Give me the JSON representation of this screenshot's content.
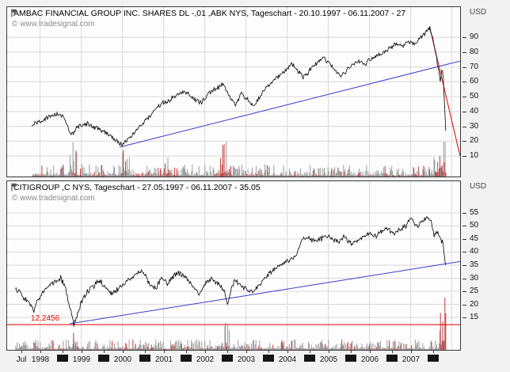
{
  "colors": {
    "price": "#000000",
    "uptrend": "#3b3bd0",
    "downtrend": "#e00000",
    "support": "#e00000",
    "grid": "#d9d9d9",
    "volume_gray": "#9b9b9b",
    "volume_red": "#c23b3b",
    "copyright_text": "#8a8a8a"
  },
  "panels": [
    {
      "title": "AMBAC FINANCIAL GROUP INC. SHARES DL -,01 ,ABK NYS, Tageschart - 20.10.1997 - 06.11.2007 - 27",
      "copyright": "© www.tradesignal.com",
      "unit": "USD"
    },
    {
      "title": "CITIGROUP ,C NYS, Tageschart - 27.05.1997 - 06.11.2007 - 35.05",
      "copyright": "© www.tradesignal.com",
      "unit": "USD",
      "support_label": "12.2456"
    }
  ],
  "time_axis": {
    "start_label": "Jul",
    "start_label_year": 1997.54,
    "year_labels": [
      "1998",
      "1999",
      "2000",
      "2001",
      "2002",
      "2003",
      "2004",
      "2005",
      "2006",
      "2007"
    ],
    "marker_years": [
      1998.54,
      1999.54,
      2000.54,
      2001.54,
      2002.54,
      2003.54,
      2004.54,
      2005.54,
      2006.54,
      2007.54
    ]
  },
  "chart_data": [
    {
      "type": "line",
      "title": "AMBAC FINANCIAL GROUP INC. SHARES DL -,01 ,ABK NYS, Tageschart - 20.10.1997 - 06.11.2007 - 27",
      "ylabel": "USD",
      "last_price": 27,
      "xlim": [
        1997.2,
        2008.2
      ],
      "ylim": [
        -3.8,
        110.3
      ],
      "y_ticks": [
        10,
        20,
        30,
        40,
        50,
        60,
        70,
        80,
        90
      ],
      "x_tick_labels": [
        "Jul",
        "1998",
        "1999",
        "2000",
        "2001",
        "2002",
        "2003",
        "2004",
        "2005",
        "2006",
        "2007"
      ],
      "series": [
        {
          "name": "ABK NYS daily close (USD)",
          "x": [
            1997.8,
            1998.0,
            1998.2,
            1998.45,
            1998.6,
            1998.75,
            1998.9,
            1999.1,
            1999.3,
            1999.5,
            1999.7,
            1999.85,
            2000.0,
            2000.15,
            2000.3,
            2000.5,
            2000.7,
            2000.9,
            2001.1,
            2001.3,
            2001.5,
            2001.7,
            2001.9,
            2002.1,
            2002.3,
            2002.45,
            2002.6,
            2002.75,
            2002.9,
            2003.05,
            2003.2,
            2003.35,
            2003.5,
            2003.65,
            2003.8,
            2003.95,
            2004.1,
            2004.25,
            2004.4,
            2004.55,
            2004.7,
            2004.85,
            2005.0,
            2005.15,
            2005.3,
            2005.45,
            2005.6,
            2005.75,
            2005.9,
            2006.05,
            2006.2,
            2006.35,
            2006.5,
            2006.65,
            2006.8,
            2006.95,
            2007.1,
            2007.25,
            2007.4,
            2007.47,
            2007.52,
            2007.57,
            2007.62,
            2007.67,
            2007.72,
            2007.76,
            2007.79,
            2007.82,
            2007.84,
            2007.85
          ],
          "y": [
            30,
            33,
            36,
            39,
            35,
            24,
            29,
            32,
            30,
            27,
            24,
            20,
            17.5,
            22,
            26,
            32,
            38,
            44,
            47,
            50,
            54,
            50,
            46,
            52,
            56,
            58,
            50,
            44,
            52,
            48,
            44,
            50,
            56,
            60,
            64,
            68,
            72,
            68,
            63,
            68,
            72,
            76,
            73,
            68,
            64,
            68,
            72,
            74,
            72,
            76,
            78,
            80,
            83,
            86,
            84,
            88,
            86,
            90,
            94,
            96,
            90,
            86,
            78,
            68,
            60,
            70,
            62,
            45,
            33,
            27
          ]
        }
      ],
      "trendlines": [
        {
          "name": "uptrend-line",
          "color": "#3b3bd0",
          "x": [
            1999.93,
            2008.2
          ],
          "y": [
            16,
            74
          ]
        },
        {
          "name": "downtrend-line",
          "color": "#e00000",
          "x": [
            2007.47,
            2008.2
          ],
          "y": [
            96,
            10
          ]
        }
      ],
      "noise_amp": 2.0,
      "seed": 7,
      "volume": {
        "max_h": 26,
        "clamp": 44,
        "spikes": [
          {
            "c": 1998.8,
            "w": 0.08,
            "m": 2.5
          },
          {
            "c": 2000.05,
            "w": 0.1,
            "m": 3.5
          },
          {
            "c": 2001.1,
            "w": 0.08,
            "m": 2.0
          },
          {
            "c": 2002.5,
            "w": 0.12,
            "m": 2.5
          },
          {
            "c": 2007.75,
            "w": 0.15,
            "m": 4.0
          }
        ]
      }
    },
    {
      "type": "line",
      "title": "CITIGROUP ,C NYS, Tageschart - 27.05.1997 - 06.11.2007 - 35.05",
      "ylabel": "USD",
      "last_price": 35.05,
      "xlim": [
        1997.2,
        2008.2
      ],
      "ylim": [
        2.6,
        67.1
      ],
      "y_ticks": [
        15,
        20,
        25,
        30,
        35,
        40,
        45,
        50,
        55
      ],
      "x_tick_labels": [
        "Jul",
        "1998",
        "1999",
        "2000",
        "2001",
        "2002",
        "2003",
        "2004",
        "2005",
        "2006",
        "2007"
      ],
      "series": [
        {
          "name": "C NYS daily close (USD)",
          "x": [
            1997.4,
            1997.55,
            1997.7,
            1997.85,
            1998.0,
            1998.15,
            1998.3,
            1998.5,
            1998.6,
            1998.7,
            1998.82,
            1998.9,
            1999.0,
            1999.15,
            1999.3,
            1999.45,
            1999.6,
            1999.75,
            1999.9,
            2000.05,
            2000.2,
            2000.35,
            2000.5,
            2000.65,
            2000.8,
            2000.95,
            2001.1,
            2001.25,
            2001.4,
            2001.55,
            2001.7,
            2001.85,
            2002.0,
            2002.15,
            2002.3,
            2002.45,
            2002.55,
            2002.65,
            2002.75,
            2002.85,
            2003.0,
            2003.15,
            2003.3,
            2003.45,
            2003.6,
            2003.75,
            2003.9,
            2004.05,
            2004.2,
            2004.35,
            2004.5,
            2004.65,
            2004.8,
            2004.95,
            2005.1,
            2005.25,
            2005.4,
            2005.55,
            2005.7,
            2005.85,
            2006.0,
            2006.15,
            2006.3,
            2006.45,
            2006.6,
            2006.75,
            2006.9,
            2007.0,
            2007.1,
            2007.2,
            2007.3,
            2007.4,
            2007.5,
            2007.55,
            2007.6,
            2007.65,
            2007.7,
            2007.75,
            2007.78,
            2007.81,
            2007.83,
            2007.85
          ],
          "y": [
            26,
            24,
            21,
            18,
            23,
            26,
            28,
            30,
            27,
            20,
            12.4,
            16,
            21,
            25,
            27,
            29,
            26,
            24,
            26,
            28,
            30,
            32,
            33,
            28,
            26,
            30,
            28,
            31,
            32,
            30,
            27,
            24,
            28,
            30,
            28,
            26,
            20,
            26,
            30,
            27,
            26,
            24.5,
            27,
            30,
            32,
            34,
            36,
            37,
            38,
            44,
            46,
            44,
            45,
            46,
            45,
            44,
            46,
            43,
            44,
            46,
            47,
            46,
            48,
            49,
            47,
            49,
            50,
            53,
            51,
            50,
            52,
            54,
            52,
            47,
            46,
            48,
            46,
            44,
            44,
            40,
            36,
            35.05
          ]
        }
      ],
      "trendlines": [
        {
          "name": "uptrend-line",
          "color": "#3b3bd0",
          "x": [
            1998.72,
            2008.2
          ],
          "y": [
            12.6,
            36.4
          ]
        }
      ],
      "support_line": {
        "value": 12.2456,
        "color": "#e00000"
      },
      "noise_amp": 1.2,
      "seed": 13,
      "volume": {
        "max_h": 22,
        "clamp": 66,
        "spikes": [
          {
            "c": 1998.85,
            "w": 0.08,
            "m": 3.0
          },
          {
            "c": 2002.5,
            "w": 0.1,
            "m": 2.5
          },
          {
            "c": 2007.82,
            "w": 0.1,
            "m": 10.0
          }
        ]
      }
    }
  ]
}
